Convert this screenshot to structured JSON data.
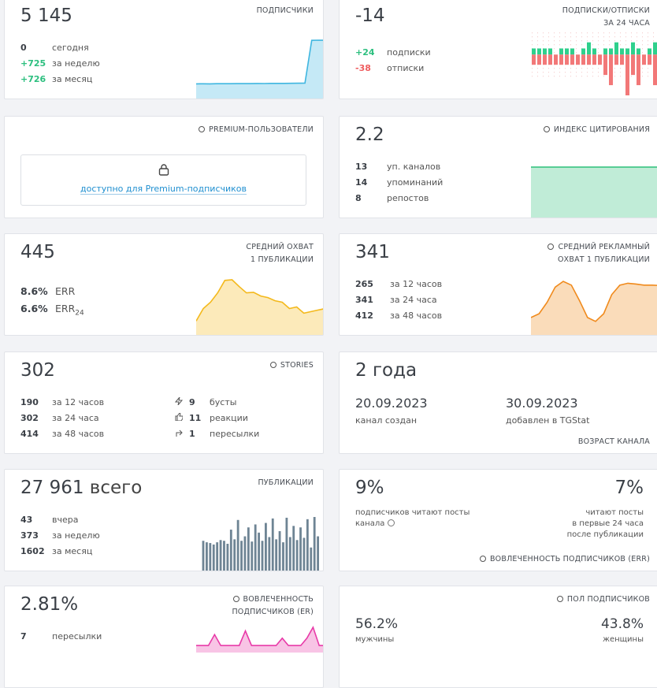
{
  "cards": {
    "subscribers": {
      "value": "5 145",
      "title": [
        "ПОДПИСЧИКИ"
      ],
      "stats": [
        {
          "value": "0",
          "label": "сегодня"
        },
        {
          "value": "+725",
          "label": "за неделю"
        },
        {
          "value": "+726",
          "label": "за месяц"
        }
      ],
      "chart": {
        "type": "area",
        "color": "#3fb6e0",
        "values": [
          4420,
          4421,
          4420,
          4422,
          4423,
          4422,
          4424,
          4425,
          4424,
          4426,
          4425,
          4427,
          4428,
          4427,
          4429,
          4430,
          4431,
          5142,
          5145,
          5144
        ]
      }
    },
    "subs_unsubs": {
      "value": "-14",
      "title": [
        "ПОДПИСКИ/ОТПИСКИ",
        "ЗА 24 ЧАСА"
      ],
      "stats": [
        {
          "value": "+24",
          "label": "подписки"
        },
        {
          "value": "-38",
          "label": "отписки"
        }
      ],
      "chart": {
        "type": "updown",
        "colors": [
          "#2fd08c",
          "#f27878"
        ],
        "up": [
          1,
          1,
          1,
          1,
          0,
          1,
          1,
          1,
          0,
          1,
          2,
          1,
          0,
          1,
          1,
          2,
          1,
          1,
          2,
          1,
          0,
          1,
          2,
          1
        ],
        "down": [
          1,
          1,
          1,
          1,
          1,
          1,
          1,
          1,
          1,
          1,
          1,
          1,
          1,
          2,
          3,
          1,
          1,
          4,
          2,
          3,
          1,
          1,
          3,
          4
        ]
      }
    },
    "premium": {
      "title": [
        "PREMIUM-ПОЛЬЗОВАТЕЛИ"
      ],
      "locked": "доступно для Premium-подписчиков"
    },
    "citation": {
      "value": "2.2",
      "title": [
        "ИНДЕКС ЦИТИРОВАНИЯ"
      ],
      "stats": [
        {
          "value": "13",
          "label": "уп. каналов"
        },
        {
          "value": "14",
          "label": "упоминаний"
        },
        {
          "value": "8",
          "label": "репостов"
        }
      ],
      "chart": {
        "type": "area",
        "color": "#2dc07a",
        "values": [
          2.2,
          2.2,
          2.2,
          2.2,
          2.2,
          2.2
        ]
      }
    },
    "reach": {
      "value": "445",
      "title": [
        "СРЕДНИЙ ОХВАТ",
        "1 ПУБЛИКАЦИИ"
      ],
      "stats": [
        {
          "value": "8.6%",
          "label": "ERR"
        },
        {
          "value": "6.6%",
          "label": "ERR",
          "sub": "24"
        }
      ],
      "chart": {
        "type": "area",
        "color": "#f4b91c",
        "values": [
          380,
          420,
          440,
          470,
          510,
          512,
          490,
          470,
          472,
          460,
          455,
          445,
          440,
          420,
          425,
          405,
          410,
          415,
          420
        ]
      }
    },
    "ad_reach": {
      "value": "341",
      "title": [
        "СРЕДНИЙ РЕКЛАМНЫЙ",
        "ОХВАТ 1 ПУБЛИКАЦИИ"
      ],
      "stats": [
        {
          "value": "265",
          "label": "за 12 часов"
        },
        {
          "value": "341",
          "label": "за 24 часа"
        },
        {
          "value": "412",
          "label": "за 48 часов"
        }
      ],
      "chart": {
        "type": "area",
        "color": "#f08a1c",
        "values": [
          300,
          310,
          340,
          380,
          395,
          385,
          345,
          300,
          290,
          310,
          360,
          385,
          390,
          388,
          385,
          385,
          384
        ]
      }
    },
    "stories": {
      "value": "302",
      "title": [
        "STORIES"
      ],
      "stats": [
        {
          "value": "190",
          "label": "за 12 часов"
        },
        {
          "value": "302",
          "label": "за 24 часа"
        },
        {
          "value": "414",
          "label": "за 48 часов"
        }
      ],
      "extra": [
        {
          "value": "9",
          "label": "бусты"
        },
        {
          "value": "11",
          "label": "реакции"
        },
        {
          "value": "1",
          "label": "пересылки"
        }
      ]
    },
    "age": {
      "value": "2 года",
      "created": {
        "value": "20.09.2023",
        "label": "канал создан"
      },
      "added": {
        "value": "30.09.2023",
        "label": "добавлен в TGStat"
      },
      "title": [
        "ВОЗРАСТ КАНАЛА"
      ]
    },
    "posts": {
      "value": "27 961",
      "unit": "всего",
      "title": [
        "ПУБЛИКАЦИИ"
      ],
      "stats": [
        {
          "value": "43",
          "label": "вчера"
        },
        {
          "value": "373",
          "label": "за неделю"
        },
        {
          "value": "1602",
          "label": "за месяц"
        }
      ],
      "chart": {
        "type": "bars",
        "color": "#6e8494",
        "values": [
          40,
          38,
          37,
          35,
          38,
          41,
          40,
          36,
          55,
          42,
          68,
          40,
          46,
          58,
          39,
          62,
          51,
          40,
          64,
          45,
          70,
          42,
          53,
          38,
          71,
          45,
          60,
          41,
          58,
          44,
          69,
          31,
          72,
          46
        ]
      }
    },
    "err": {
      "left": {
        "value": "9%",
        "text": [
          "подписчиков читают посты",
          "канала"
        ]
      },
      "right": {
        "value": "7%",
        "text": [
          "читают посты",
          "в первые 24 часа",
          "после публикации"
        ]
      },
      "title": [
        "ВОВЛЕЧЕННОСТЬ ПОДПИСЧИКОВ (ERR)"
      ]
    },
    "er": {
      "value": "2.81%",
      "title": [
        "ВОВЛЕЧЕННОСТЬ",
        "ПОДПИСЧИКОВ (ER)"
      ],
      "stats": [
        {
          "value": "7",
          "label": "пересылки"
        }
      ],
      "chart": {
        "type": "area",
        "color": "#e83aa8",
        "values": [
          0,
          0,
          0,
          3,
          0,
          0,
          0,
          0,
          4,
          0,
          0,
          0,
          0,
          0,
          2,
          0,
          0,
          0,
          2,
          5,
          0,
          0
        ]
      }
    },
    "gender": {
      "title": [
        "ПОЛ ПОДПИСЧИКОВ"
      ],
      "male": {
        "value": "56.2%",
        "label": "мужчины"
      },
      "female": {
        "value": "43.8%",
        "label": "женщины"
      }
    }
  }
}
